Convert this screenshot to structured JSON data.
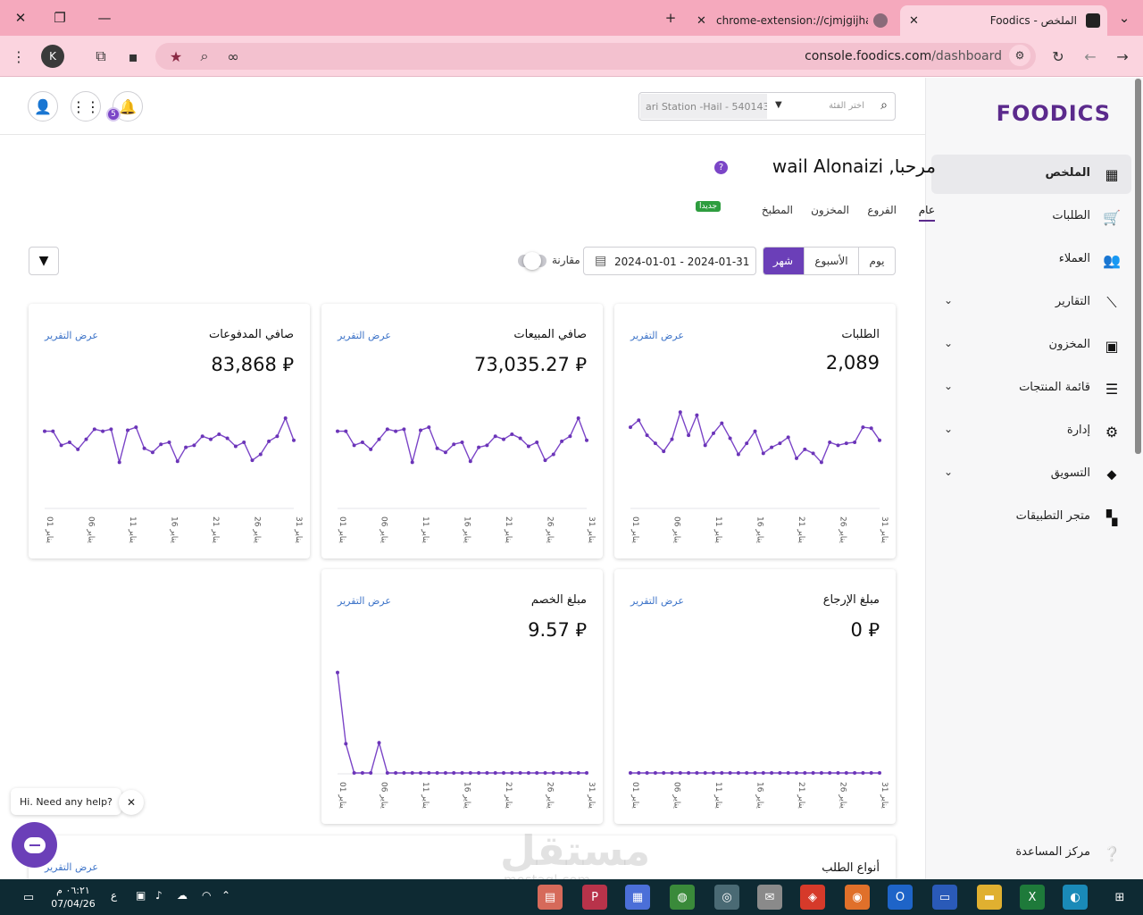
{
  "browser": {
    "tabs": [
      {
        "title": "الملخص - Foodics",
        "active": true
      },
      {
        "title": "chrome-extension://cjmjgijhapgjkbgpfok",
        "active": false
      }
    ],
    "url_host": "console.foodics.com",
    "url_path": "/dashboard",
    "profile_initial": "K"
  },
  "sidebar": {
    "logo": "FOODICS",
    "items": [
      {
        "label": "الملخص",
        "icon": "dashboard-icon",
        "glyph": "▦",
        "active": true,
        "expandable": false
      },
      {
        "label": "الطلبات",
        "icon": "cart-icon",
        "glyph": "🛒",
        "active": false,
        "expandable": false
      },
      {
        "label": "العملاء",
        "icon": "users-icon",
        "glyph": "👥",
        "active": false,
        "expandable": false
      },
      {
        "label": "التقارير",
        "icon": "trend-icon",
        "glyph": "⟋",
        "active": false,
        "expandable": true
      },
      {
        "label": "المخزون",
        "icon": "bag-icon",
        "glyph": "▣",
        "active": false,
        "expandable": true
      },
      {
        "label": "قائمة المنتجات",
        "icon": "menu-icon",
        "glyph": "☰",
        "active": false,
        "expandable": true
      },
      {
        "label": "إدارة",
        "icon": "gear-icon",
        "glyph": "⚙",
        "active": false,
        "expandable": true
      },
      {
        "label": "التسويق",
        "icon": "tag-icon",
        "glyph": "⬥",
        "active": false,
        "expandable": true
      },
      {
        "label": "متجر التطبيقات",
        "icon": "apps-icon",
        "glyph": "▚",
        "active": false,
        "expandable": false
      }
    ],
    "help_center": "مركز المساعدة"
  },
  "header": {
    "branch_value": "ari Station -Hail - 540143",
    "branch_search_placeholder": "اختر الفئة",
    "notification_count": "5"
  },
  "welcome": {
    "text": "مرحبا, wail Alonaizi"
  },
  "dashboard_tabs": [
    {
      "label": "عام",
      "active": true
    },
    {
      "label": "الفروع",
      "active": false
    },
    {
      "label": "المخزون",
      "active": false
    },
    {
      "label": "المطبخ",
      "active": false
    }
  ],
  "new_badge": "جديدا",
  "filters": {
    "periods": [
      {
        "label": "يوم",
        "active": false
      },
      {
        "label": "الأسبوع",
        "active": false
      },
      {
        "label": "شهر",
        "active": true
      }
    ],
    "date_range": "2024-01-01 - 2024-01-31",
    "compare_label": "مقارنة",
    "compare_on": false
  },
  "link_label": "عرض التقرير",
  "x_ticks": [
    "01 يناير",
    "06 يناير",
    "11 يناير",
    "16 يناير",
    "21 يناير",
    "26 يناير",
    "31 يناير"
  ],
  "cards": [
    {
      "id": "orders",
      "title": "الطلبات",
      "value": "2,089",
      "chart_data": {
        "type": "line",
        "x": [
          1,
          2,
          3,
          4,
          5,
          6,
          7,
          8,
          9,
          10,
          11,
          12,
          13,
          14,
          15,
          16,
          17,
          18,
          19,
          20,
          21,
          22,
          23,
          24,
          25,
          26,
          27,
          28,
          29,
          30,
          31
        ],
        "values": [
          80,
          87,
          72,
          64,
          56,
          68,
          95,
          72,
          92,
          62,
          74,
          84,
          69,
          53,
          64,
          76,
          54,
          60,
          64,
          70,
          49,
          58,
          54,
          45,
          65,
          62,
          64,
          65,
          80,
          79,
          67
        ],
        "ylim": [
          0,
          105
        ]
      }
    },
    {
      "id": "net-sales",
      "title": "صافي المبيعات",
      "value": "73,035.27 ⃁",
      "chart_data": {
        "type": "line",
        "x": [
          1,
          2,
          3,
          4,
          5,
          6,
          7,
          8,
          9,
          10,
          11,
          12,
          13,
          14,
          15,
          16,
          17,
          18,
          19,
          20,
          21,
          22,
          23,
          24,
          25,
          26,
          27,
          28,
          29,
          30,
          31
        ],
        "values": [
          76,
          76,
          62,
          65,
          58,
          68,
          78,
          76,
          78,
          45,
          77,
          80,
          59,
          55,
          63,
          65,
          46,
          60,
          62,
          71,
          68,
          73,
          69,
          61,
          65,
          47,
          53,
          66,
          71,
          89,
          67
        ],
        "ylim": [
          0,
          105
        ]
      }
    },
    {
      "id": "net-payments",
      "title": "صافي المدفوعات",
      "value": "83,868 ⃁",
      "chart_data": {
        "type": "line",
        "x": [
          1,
          2,
          3,
          4,
          5,
          6,
          7,
          8,
          9,
          10,
          11,
          12,
          13,
          14,
          15,
          16,
          17,
          18,
          19,
          20,
          21,
          22,
          23,
          24,
          25,
          26,
          27,
          28,
          29,
          30,
          31
        ],
        "values": [
          76,
          76,
          62,
          65,
          58,
          68,
          78,
          76,
          78,
          45,
          77,
          80,
          59,
          55,
          63,
          65,
          46,
          60,
          62,
          71,
          68,
          73,
          69,
          61,
          65,
          47,
          53,
          66,
          71,
          89,
          67
        ],
        "ylim": [
          0,
          105
        ]
      }
    },
    {
      "id": "refunds",
      "title": "مبلغ الإرجاع",
      "value": "0 ⃁",
      "chart_data": {
        "type": "line",
        "x": [
          1,
          2,
          3,
          4,
          5,
          6,
          7,
          8,
          9,
          10,
          11,
          12,
          13,
          14,
          15,
          16,
          17,
          18,
          19,
          20,
          21,
          22,
          23,
          24,
          25,
          26,
          27,
          28,
          29,
          30,
          31
        ],
        "values": [
          0,
          0,
          0,
          0,
          0,
          0,
          0,
          0,
          0,
          0,
          0,
          0,
          0,
          0,
          0,
          0,
          0,
          0,
          0,
          0,
          0,
          0,
          0,
          0,
          0,
          0,
          0,
          0,
          0,
          0,
          0
        ],
        "ylim": [
          0,
          105
        ]
      }
    },
    {
      "id": "discounts",
      "title": "مبلغ الخصم",
      "value": "9.57 ⃁",
      "chart_data": {
        "type": "line",
        "x": [
          1,
          2,
          3,
          4,
          5,
          6,
          7,
          8,
          9,
          10,
          11,
          12,
          13,
          14,
          15,
          16,
          17,
          18,
          19,
          20,
          21,
          22,
          23,
          24,
          25,
          26,
          27,
          28,
          29,
          30,
          31
        ],
        "values": [
          100,
          29,
          0,
          0,
          0,
          30,
          0,
          0,
          0,
          0,
          0,
          0,
          0,
          0,
          0,
          0,
          0,
          0,
          0,
          0,
          0,
          0,
          0,
          0,
          0,
          0,
          0,
          0,
          0,
          0,
          0
        ],
        "ylim": [
          0,
          105
        ]
      }
    }
  ],
  "order_types_title": "أنواع الطلب",
  "chat": {
    "greeting": "Hi. Need any help?"
  },
  "watermark": {
    "text": "مستقل",
    "sub": "mostaql.com"
  },
  "taskbar": {
    "time": "٠٦:٢١ م",
    "date": "07/04/26",
    "lang": "ع"
  }
}
